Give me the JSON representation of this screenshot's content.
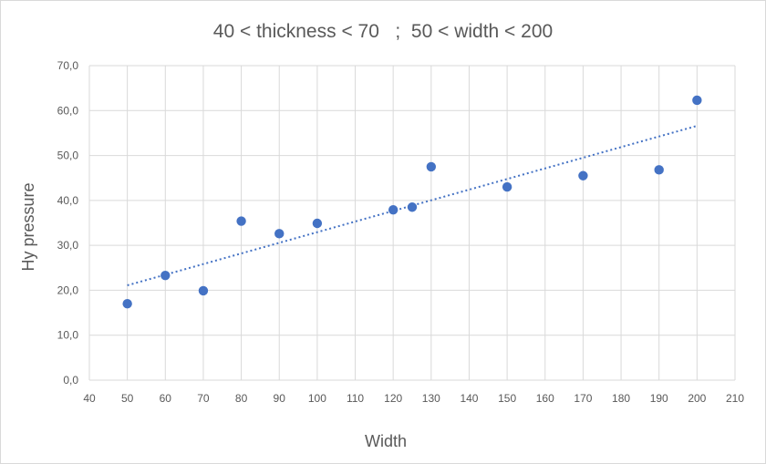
{
  "chart_data": {
    "type": "scatter",
    "title": "40 < thickness < 70   ;  50 < width < 200",
    "xlabel": "Width",
    "ylabel": "Hy pressure",
    "xlim": [
      40,
      210
    ],
    "ylim": [
      0,
      70
    ],
    "x_ticks": [
      "40",
      "50",
      "60",
      "70",
      "80",
      "90",
      "100",
      "110",
      "120",
      "130",
      "140",
      "150",
      "160",
      "170",
      "180",
      "190",
      "200",
      "210"
    ],
    "y_ticks": [
      "0,0",
      "10,0",
      "20,0",
      "30,0",
      "40,0",
      "50,0",
      "60,0",
      "70,0"
    ],
    "grid": true,
    "legend": "none",
    "marker_color": "#4472c4",
    "trendline": {
      "type": "linear",
      "style": "dotted",
      "color": "#4472c4",
      "from": [
        50,
        21.1
      ],
      "to": [
        200,
        56.6
      ]
    },
    "points": [
      {
        "x": 50,
        "y": 17.0
      },
      {
        "x": 60,
        "y": 23.3
      },
      {
        "x": 70,
        "y": 19.9
      },
      {
        "x": 80,
        "y": 35.4
      },
      {
        "x": 90,
        "y": 32.6
      },
      {
        "x": 100,
        "y": 34.9
      },
      {
        "x": 120,
        "y": 37.9
      },
      {
        "x": 125,
        "y": 38.5
      },
      {
        "x": 130,
        "y": 47.5
      },
      {
        "x": 150,
        "y": 43.0
      },
      {
        "x": 170,
        "y": 45.5
      },
      {
        "x": 190,
        "y": 46.8
      },
      {
        "x": 200,
        "y": 62.3
      }
    ]
  }
}
